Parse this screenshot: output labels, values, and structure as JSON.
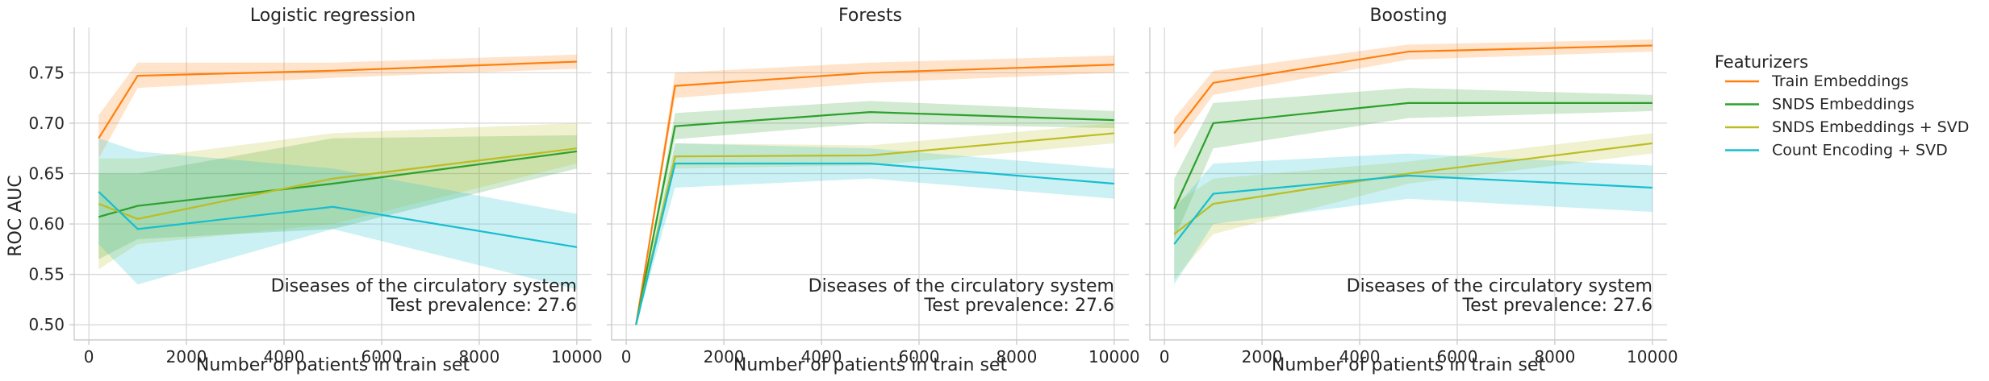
{
  "chart_data": {
    "type": "line",
    "ylabel": "ROC AUC",
    "xlabel": "Number of patients in train set",
    "x": [
      200,
      1000,
      5000,
      10000
    ],
    "xlim": [
      -300,
      10300
    ],
    "ylim": [
      0.485,
      0.795
    ],
    "xticks": [
      0,
      2000,
      4000,
      6000,
      8000,
      10000
    ],
    "yticks": [
      0.5,
      0.55,
      0.6,
      0.65,
      0.7,
      0.75
    ],
    "ytick_labels": [
      "0.50",
      "0.55",
      "0.60",
      "0.65",
      "0.70",
      "0.75"
    ],
    "grid": true,
    "legend": {
      "title": "Featurizers",
      "placement": "right",
      "entries": [
        "Train Embeddings",
        "SNDS Embeddings",
        "SNDS Embeddings + SVD",
        "Count Encoding + SVD"
      ]
    },
    "series_colors": [
      "#ff7f0e",
      "#2ca02c",
      "#bcbd22",
      "#17becf"
    ],
    "panels": [
      {
        "title": "Logistic regression",
        "annotation": [
          "Diseases of the circulatory system",
          "Test prevalence: 27.6"
        ],
        "series": [
          {
            "name": "Train Embeddings",
            "values": [
              0.685,
              0.747,
              0.752,
              0.761
            ],
            "lower": [
              0.665,
              0.735,
              0.745,
              0.754
            ],
            "upper": [
              0.708,
              0.76,
              0.76,
              0.768
            ]
          },
          {
            "name": "SNDS Embeddings",
            "values": [
              0.607,
              0.618,
              0.64,
              0.672
            ],
            "lower": [
              0.565,
              0.585,
              0.595,
              0.655
            ],
            "upper": [
              0.65,
              0.65,
              0.685,
              0.688
            ]
          },
          {
            "name": "SNDS Embeddings + SVD",
            "values": [
              0.62,
              0.605,
              0.645,
              0.675
            ],
            "lower": [
              0.555,
              0.58,
              0.6,
              0.66
            ],
            "upper": [
              0.665,
              0.665,
              0.69,
              0.7
            ]
          },
          {
            "name": "Count Encoding + SVD",
            "values": [
              0.632,
              0.595,
              0.617,
              0.577
            ],
            "lower": [
              0.58,
              0.54,
              0.595,
              0.535
            ],
            "upper": [
              0.685,
              0.672,
              0.655,
              0.61
            ]
          }
        ]
      },
      {
        "title": "Forests",
        "annotation": [
          "Diseases of the circulatory system",
          "Test prevalence: 27.6"
        ],
        "series": [
          {
            "name": "Train Embeddings",
            "values": [
              0.5,
              0.737,
              0.75,
              0.758
            ],
            "lower": [
              0.5,
              0.725,
              0.74,
              0.75
            ],
            "upper": [
              0.5,
              0.75,
              0.76,
              0.767
            ]
          },
          {
            "name": "SNDS Embeddings",
            "values": [
              0.5,
              0.697,
              0.711,
              0.703
            ],
            "lower": [
              0.5,
              0.684,
              0.7,
              0.695
            ],
            "upper": [
              0.5,
              0.71,
              0.722,
              0.712
            ]
          },
          {
            "name": "SNDS Embeddings + SVD",
            "values": [
              0.5,
              0.667,
              0.668,
              0.69
            ],
            "lower": [
              0.5,
              0.655,
              0.658,
              0.68
            ],
            "upper": [
              0.5,
              0.68,
              0.678,
              0.7
            ]
          },
          {
            "name": "Count Encoding + SVD",
            "values": [
              0.5,
              0.66,
              0.66,
              0.64
            ],
            "lower": [
              0.5,
              0.636,
              0.645,
              0.625
            ],
            "upper": [
              0.5,
              0.68,
              0.675,
              0.655
            ]
          }
        ]
      },
      {
        "title": "Boosting",
        "annotation": [
          "Diseases of the circulatory system",
          "Test prevalence: 27.6"
        ],
        "series": [
          {
            "name": "Train Embeddings",
            "values": [
              0.69,
              0.74,
              0.771,
              0.777
            ],
            "lower": [
              0.675,
              0.728,
              0.763,
              0.771
            ],
            "upper": [
              0.705,
              0.752,
              0.778,
              0.783
            ]
          },
          {
            "name": "SNDS Embeddings",
            "values": [
              0.615,
              0.7,
              0.72,
              0.72
            ],
            "lower": [
              0.585,
              0.675,
              0.705,
              0.712
            ],
            "upper": [
              0.645,
              0.72,
              0.735,
              0.728
            ]
          },
          {
            "name": "SNDS Embeddings + SVD",
            "values": [
              0.59,
              0.62,
              0.65,
              0.68
            ],
            "lower": [
              0.545,
              0.59,
              0.64,
              0.67
            ],
            "upper": [
              0.62,
              0.645,
              0.662,
              0.69
            ]
          },
          {
            "name": "Count Encoding + SVD",
            "values": [
              0.58,
              0.63,
              0.648,
              0.636
            ],
            "lower": [
              0.54,
              0.6,
              0.625,
              0.612
            ],
            "upper": [
              0.615,
              0.66,
              0.67,
              0.658
            ]
          }
        ]
      }
    ]
  }
}
